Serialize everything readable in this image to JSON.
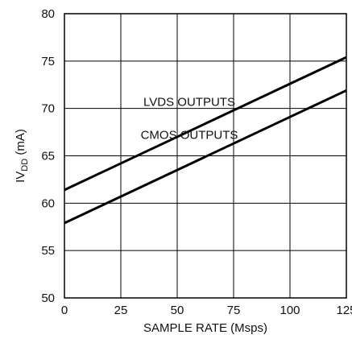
{
  "chart_data": {
    "type": "line",
    "xlabel": "SAMPLE RATE (Msps)",
    "ylabel": {
      "prefix": "IV",
      "subscript": "DD",
      "suffix": " (mA)"
    },
    "xlim": [
      0,
      125
    ],
    "ylim": [
      50,
      80
    ],
    "x_ticks": [
      "0",
      "25",
      "50",
      "75",
      "100",
      "125"
    ],
    "y_ticks": [
      "50",
      "55",
      "60",
      "65",
      "70",
      "75",
      "80"
    ],
    "grid": true,
    "legend": "none",
    "series": [
      {
        "name": "LVDS OUTPUTS",
        "x": [
          0,
          125
        ],
        "y": [
          61.4,
          75.4
        ],
        "color": "#000000"
      },
      {
        "name": "CMOS OUTPUTS",
        "x": [
          0,
          125
        ],
        "y": [
          57.9,
          71.9
        ],
        "color": "#000000"
      }
    ]
  }
}
